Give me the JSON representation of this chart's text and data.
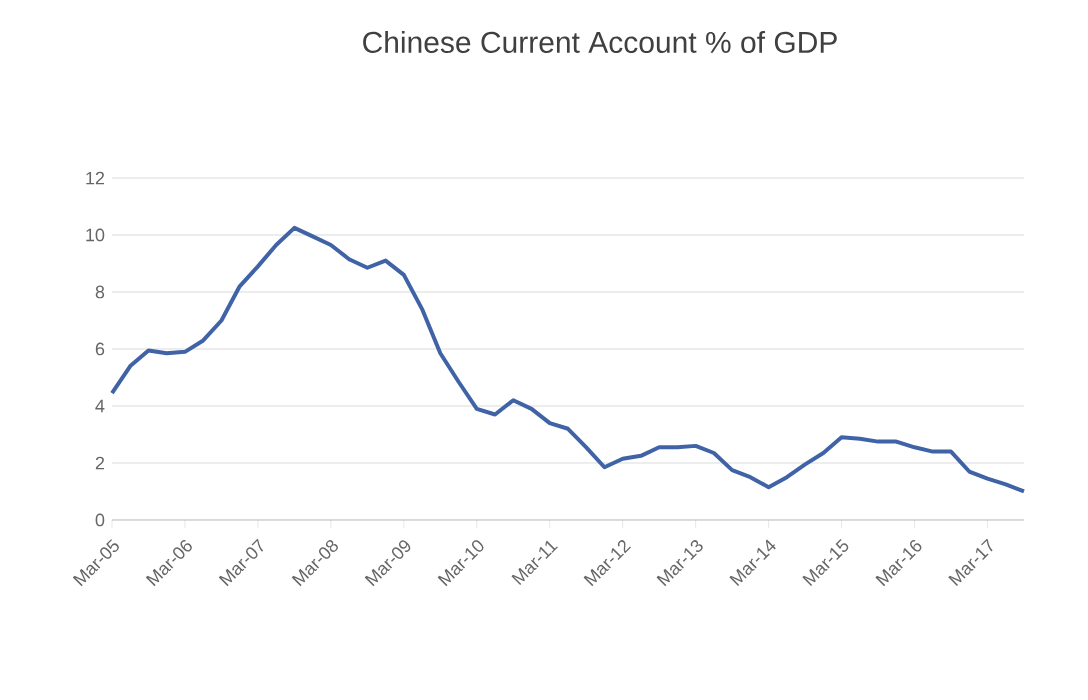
{
  "chart_data": {
    "type": "line",
    "title": "Chinese Current Account % of GDP",
    "categories": [
      "Mar-05",
      null,
      null,
      null,
      "Mar-06",
      null,
      null,
      null,
      "Mar-07",
      null,
      null,
      null,
      "Mar-08",
      null,
      null,
      null,
      "Mar-09",
      null,
      null,
      null,
      "Mar-10",
      null,
      null,
      null,
      "Mar-11",
      null,
      null,
      null,
      "Mar-12",
      null,
      null,
      null,
      "Mar-13",
      null,
      null,
      null,
      "Mar-14",
      null,
      null,
      null,
      "Mar-15",
      null,
      null,
      null,
      "Mar-16",
      null,
      null,
      null,
      "Mar-17",
      null,
      null
    ],
    "values": [
      4.45,
      5.4,
      5.95,
      5.85,
      5.9,
      6.3,
      7.0,
      8.2,
      8.9,
      9.65,
      10.25,
      9.95,
      9.65,
      9.15,
      8.85,
      9.1,
      8.6,
      7.4,
      5.85,
      4.85,
      3.9,
      3.7,
      4.2,
      3.9,
      3.4,
      3.2,
      2.55,
      1.85,
      2.15,
      2.25,
      2.55,
      2.55,
      2.6,
      2.35,
      1.75,
      1.5,
      1.15,
      1.5,
      1.95,
      2.35,
      2.9,
      2.85,
      2.75,
      2.75,
      2.55,
      2.4,
      2.4,
      1.7,
      1.45,
      1.25,
      1.0
    ],
    "color": "#3f63a6",
    "ylim": [
      0,
      12
    ],
    "yticks": [
      0,
      2,
      4,
      6,
      8,
      10,
      12
    ],
    "grid": "y",
    "marker": "none",
    "line_style": "solid"
  }
}
